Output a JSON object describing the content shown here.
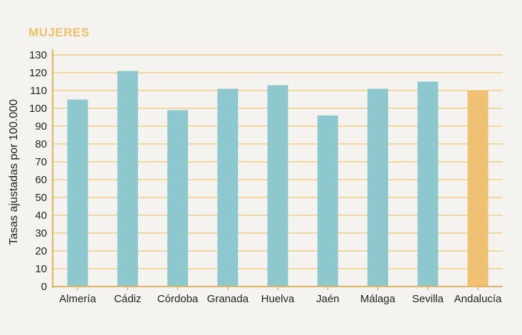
{
  "chart_data": {
    "type": "bar",
    "title": "MUJERES",
    "ylabel": "Tasas ajustadas por 100.000",
    "xlabel": "",
    "categories": [
      "Almería",
      "Cádiz",
      "Córdoba",
      "Granada",
      "Huelva",
      "Jaén",
      "Málaga",
      "Sevilla",
      "Andalucía"
    ],
    "values": [
      105,
      121,
      99,
      111,
      113,
      96,
      111,
      115,
      110
    ],
    "highlight_index": 8,
    "ylim": [
      0,
      130
    ],
    "yticks": [
      0,
      10,
      20,
      30,
      40,
      50,
      60,
      70,
      80,
      90,
      100,
      110,
      120,
      130
    ],
    "grid": true,
    "colors": {
      "bar": "#8ec8cf",
      "highlight": "#f0c172",
      "grid": "#f3d7a2",
      "axis": "#e3b360",
      "title": "#efbf6a",
      "text": "#222222"
    }
  }
}
